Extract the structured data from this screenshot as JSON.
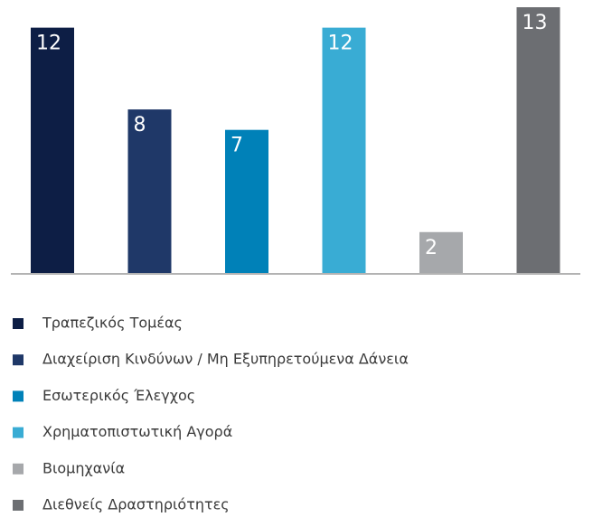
{
  "chart_data": {
    "type": "bar",
    "categories": [
      "Τραπεζικός Τομέας",
      "Διαχείριση Κινδύνων / Μη Εξυπηρετούμενα Δάνεια",
      "Εσωτερικός Έλεγχος",
      "Χρηματοπιστωτική Αγορά",
      "Βιομηχανία",
      "Διεθνείς Δραστηριότητες"
    ],
    "values": [
      12,
      8,
      7,
      12,
      2,
      13
    ],
    "colors": [
      "#0d1e45",
      "#1f3868",
      "#0081b8",
      "#39acd4",
      "#a6a8ab",
      "#6c6e72"
    ],
    "ylim": [
      0,
      13
    ]
  }
}
